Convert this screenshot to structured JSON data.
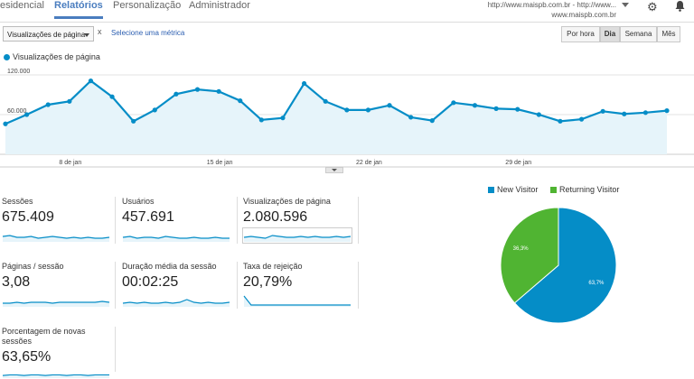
{
  "nav": {
    "tabs": [
      {
        "label": "esidencial"
      },
      {
        "label": "Relatórios",
        "active": true
      },
      {
        "label": "Personalização"
      },
      {
        "label": "Administrador"
      }
    ],
    "account_line1": "http://www.maispb.com.br - http://www...",
    "account_line2": "www.maispb.com.br",
    "icons": [
      "gear-icon",
      "bell-icon"
    ]
  },
  "toolbar": {
    "metric_select": "Visualizações de página",
    "remove": "x",
    "select_metric_link": "Selecione uma métrica",
    "granularity": [
      {
        "label": "Por hora"
      },
      {
        "label": "Dia",
        "active": true
      },
      {
        "label": "Semana"
      },
      {
        "label": "Mês"
      }
    ]
  },
  "chart_data": {
    "type": "area",
    "series": [
      {
        "name": "Visualizações de página",
        "values": [
          46000,
          60000,
          75000,
          80000,
          111000,
          87000,
          50000,
          67000,
          91000,
          98000,
          95000,
          81000,
          52000,
          55000,
          107000,
          80000,
          67000,
          67000,
          74000,
          56000,
          51000,
          78000,
          74000,
          69000,
          68000,
          60000,
          50000,
          53000,
          65000,
          61000,
          63000,
          66000
        ]
      }
    ],
    "x_tick_labels": [
      "8 de jan",
      "15 de jan",
      "22 de jan",
      "29 de jan"
    ],
    "y_tick_labels": [
      "120.000",
      "60.000"
    ],
    "ylim": [
      0,
      120000
    ],
    "grid": true,
    "colors": {
      "line": "#058dc7",
      "fill": "#e6f4fa"
    }
  },
  "metrics": [
    {
      "label": "Sessões",
      "value": "675.409",
      "spark": [
        6,
        7,
        5,
        5,
        6,
        4,
        5,
        6,
        5,
        4,
        5,
        4,
        5,
        4,
        4,
        5
      ]
    },
    {
      "label": "Usuários",
      "value": "457.691",
      "spark": [
        5,
        6,
        4,
        5,
        5,
        4,
        6,
        5,
        4,
        4,
        5,
        4,
        4,
        5,
        4,
        4
      ]
    },
    {
      "label": "Visualizações de página",
      "value": "2.080.596",
      "spark": [
        5,
        6,
        5,
        4,
        7,
        6,
        5,
        5,
        6,
        5,
        6,
        5,
        5,
        6,
        5,
        6
      ]
    },
    {
      "label": "Páginas / sessão",
      "value": "3,08",
      "spark": [
        4,
        4,
        5,
        4,
        5,
        5,
        5,
        4,
        5,
        5,
        5,
        5,
        5,
        5,
        6,
        5
      ]
    },
    {
      "label": "Duração média da sessão",
      "value": "00:02:25",
      "spark": [
        4,
        5,
        4,
        5,
        4,
        4,
        5,
        4,
        5,
        8,
        5,
        4,
        5,
        4,
        4,
        5
      ]
    },
    {
      "label": "Taxa de rejeição",
      "value": "20,79%",
      "spark": [
        12,
        2,
        2,
        2,
        2,
        2,
        2,
        2,
        2,
        2,
        2,
        2,
        2,
        2,
        2,
        2
      ]
    },
    {
      "label": "Porcentagem de novas sessões",
      "value": "63,65%",
      "spark": [
        4,
        5,
        5,
        4,
        5,
        5,
        4,
        5,
        5,
        4,
        5,
        5,
        4,
        5,
        5,
        5
      ]
    }
  ],
  "pie": {
    "legend": [
      {
        "label": "New Visitor",
        "color": "#058dc7"
      },
      {
        "label": "Returning Visitor",
        "color": "#50b432"
      }
    ],
    "slices": [
      {
        "label": "63,7%",
        "value": 63.7,
        "color": "#058dc7"
      },
      {
        "label": "36,3%",
        "value": 36.3,
        "color": "#50b432"
      }
    ]
  }
}
